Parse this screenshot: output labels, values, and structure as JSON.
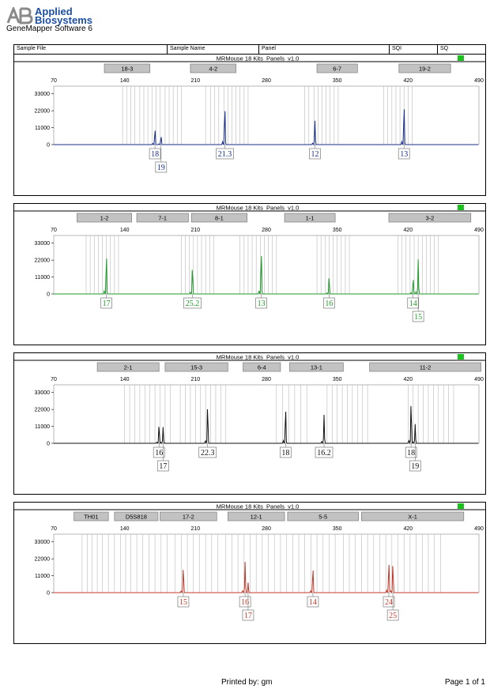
{
  "header": {
    "brand_line1": "Applied",
    "brand_line2": "Biosystems",
    "software": "GeneMapper Software 6",
    "brand_color": "#1d4ea1"
  },
  "columns": [
    "Sample File",
    "Sample Name",
    "Panel",
    "SQI",
    "SQ"
  ],
  "footer": {
    "printed_by": "Printed by: gm",
    "page": "Page 1 of 1"
  },
  "chart_data": [
    {
      "type": "line",
      "panel_title": "MRMouse 18 Kits_Panels_v1.0",
      "color": "#1a2f8a",
      "xlim": [
        70,
        490
      ],
      "x_ticks": [
        70,
        140,
        210,
        280,
        350,
        420,
        490
      ],
      "ylim": [
        0,
        38000
      ],
      "y_ticks": [
        0,
        11000,
        22000,
        33000
      ],
      "markers": [
        {
          "name": "18-3",
          "range": [
            120,
            165
          ]
        },
        {
          "name": "4-2",
          "range": [
            205,
            250
          ]
        },
        {
          "name": "6-7",
          "range": [
            330,
            370
          ]
        },
        {
          "name": "19-2",
          "range": [
            411,
            462
          ]
        }
      ],
      "bins": [
        138,
        142,
        146,
        150,
        155,
        159,
        163,
        167,
        171,
        175,
        180,
        184,
        188,
        192,
        196,
        220,
        225,
        229,
        233,
        238,
        242,
        246,
        250,
        254,
        258,
        262,
        318,
        322,
        327,
        331,
        335,
        339,
        343,
        347,
        351,
        396,
        400,
        404,
        408,
        412,
        416,
        420,
        424
      ],
      "peaks": [
        {
          "x": 170,
          "height": 11000
        },
        {
          "x": 176,
          "height": 6000
        },
        {
          "x": 239,
          "height": 26500
        },
        {
          "x": 328,
          "height": 15500
        },
        {
          "x": 416,
          "height": 28000
        }
      ],
      "allele_calls": [
        {
          "label": "18",
          "x": 170,
          "row": 1
        },
        {
          "label": "19",
          "x": 176,
          "row": 2
        },
        {
          "label": "21.3",
          "x": 239,
          "row": 1
        },
        {
          "label": "12",
          "x": 328,
          "row": 1
        },
        {
          "label": "13",
          "x": 416,
          "row": 1
        }
      ]
    },
    {
      "type": "line",
      "panel_title": "MRMouse 18 Kits_Panels_v1.0",
      "color": "#1f9a2a",
      "xlim": [
        70,
        490
      ],
      "x_ticks": [
        70,
        140,
        210,
        280,
        350,
        420,
        490
      ],
      "ylim": [
        0,
        38000
      ],
      "y_ticks": [
        0,
        11000,
        22000,
        33000
      ],
      "markers": [
        {
          "name": "1-2",
          "range": [
            93,
            147
          ]
        },
        {
          "name": "7-1",
          "range": [
            152,
            203
          ]
        },
        {
          "name": "8-1",
          "range": [
            206,
            261
          ]
        },
        {
          "name": "1-1",
          "range": [
            298,
            348
          ]
        },
        {
          "name": "3-2",
          "range": [
            401,
            482
          ]
        }
      ],
      "bins": [
        102,
        106,
        110,
        114,
        118,
        122,
        126,
        130,
        134,
        196,
        200,
        204,
        208,
        212,
        216,
        220,
        224,
        228,
        254,
        258,
        262,
        266,
        270,
        274,
        278,
        282,
        286,
        290,
        330,
        334,
        338,
        342,
        346,
        350,
        354,
        358,
        362,
        410,
        414,
        418,
        422,
        426,
        430,
        434,
        438,
        442,
        446,
        450
      ],
      "peaks": [
        {
          "x": 122,
          "height": 28000
        },
        {
          "x": 207,
          "height": 19000
        },
        {
          "x": 275,
          "height": 30000
        },
        {
          "x": 342,
          "height": 12500
        },
        {
          "x": 425,
          "height": 11000
        },
        {
          "x": 430,
          "height": 22500
        }
      ],
      "allele_calls": [
        {
          "label": "17",
          "x": 122,
          "row": 1
        },
        {
          "label": "25.2",
          "x": 207,
          "row": 1
        },
        {
          "label": "13",
          "x": 275,
          "row": 1
        },
        {
          "label": "16",
          "x": 342,
          "row": 1
        },
        {
          "label": "14",
          "x": 425,
          "row": 1
        },
        {
          "label": "15",
          "x": 430,
          "row": 2
        }
      ]
    },
    {
      "type": "line",
      "panel_title": "MRMouse 18 Kits_Panels_v1.0",
      "color": "#111111",
      "xlim": [
        70,
        490
      ],
      "x_ticks": [
        70,
        140,
        210,
        280,
        350,
        420,
        490
      ],
      "ylim": [
        0,
        38000
      ],
      "y_ticks": [
        0,
        11000,
        22000,
        33000
      ],
      "markers": [
        {
          "name": "2-1",
          "range": [
            113,
            174
          ]
        },
        {
          "name": "15-3",
          "range": [
            180,
            242
          ]
        },
        {
          "name": "6-4",
          "range": [
            257,
            294
          ]
        },
        {
          "name": "13-1",
          "range": [
            303,
            356
          ]
        },
        {
          "name": "11-2",
          "range": [
            382,
            492
          ]
        }
      ],
      "bins": [
        140,
        145,
        150,
        155,
        160,
        165,
        170,
        175,
        180,
        185,
        195,
        200,
        205,
        210,
        215,
        220,
        225,
        230,
        235,
        240,
        290,
        296,
        302,
        308,
        314,
        320,
        340,
        345,
        350,
        355,
        360,
        365,
        370,
        375,
        380,
        420,
        425,
        430,
        435,
        440,
        445,
        450,
        455,
        460,
        465
      ],
      "peaks": [
        {
          "x": 174,
          "height": 13000
        },
        {
          "x": 178,
          "height": 10500
        },
        {
          "x": 222,
          "height": 27000
        },
        {
          "x": 299,
          "height": 25000
        },
        {
          "x": 337,
          "height": 18500
        },
        {
          "x": 423,
          "height": 29500
        },
        {
          "x": 427,
          "height": 12500
        }
      ],
      "allele_calls": [
        {
          "label": "16",
          "x": 174,
          "row": 1
        },
        {
          "label": "17",
          "x": 178,
          "row": 2
        },
        {
          "label": "22.3",
          "x": 222,
          "row": 1
        },
        {
          "label": "18",
          "x": 299,
          "row": 1
        },
        {
          "label": "16.2",
          "x": 337,
          "row": 1
        },
        {
          "label": "18",
          "x": 423,
          "row": 1
        },
        {
          "label": "19",
          "x": 427,
          "row": 2
        }
      ]
    },
    {
      "type": "line",
      "panel_title": "MRMouse 18 Kits_Panels_v1.0",
      "color": "#c0392b",
      "xlim": [
        70,
        490
      ],
      "x_ticks": [
        70,
        140,
        210,
        280,
        350,
        420,
        490
      ],
      "ylim": [
        0,
        38000
      ],
      "y_ticks": [
        0,
        11000,
        22000,
        33000
      ],
      "markers": [
        {
          "name": "TH01",
          "range": [
            90,
            124
          ]
        },
        {
          "name": "D5S818",
          "range": [
            130,
            173
          ]
        },
        {
          "name": "17-2",
          "range": [
            175,
            231
          ]
        },
        {
          "name": "12-1",
          "range": [
            242,
            298
          ]
        },
        {
          "name": "5-5",
          "range": [
            301,
            371
          ]
        },
        {
          "name": "X-1",
          "range": [
            374,
            475
          ]
        }
      ],
      "bins": [
        98,
        103,
        108,
        113,
        118,
        124,
        130,
        136,
        141,
        146,
        152,
        158,
        164,
        170,
        176,
        182,
        190,
        196,
        202,
        208,
        214,
        220,
        226,
        232,
        240,
        246,
        252,
        258,
        264,
        270,
        276,
        282,
        288,
        294,
        300,
        306,
        312,
        318,
        324,
        330,
        336,
        342,
        348,
        356,
        362,
        368,
        374,
        380,
        386,
        392,
        398,
        404,
        410,
        416,
        422,
        428,
        434,
        440,
        446,
        452
      ],
      "peaks": [
        {
          "x": 198,
          "height": 18000
        },
        {
          "x": 259,
          "height": 20000
        },
        {
          "x": 262,
          "height": 6500
        },
        {
          "x": 326,
          "height": 17500
        },
        {
          "x": 401,
          "height": 22000
        },
        {
          "x": 405,
          "height": 21000
        }
      ],
      "allele_calls": [
        {
          "label": "15",
          "x": 198,
          "row": 1
        },
        {
          "label": "16",
          "x": 259,
          "row": 1
        },
        {
          "label": "17",
          "x": 262,
          "row": 2
        },
        {
          "label": "14",
          "x": 326,
          "row": 1
        },
        {
          "label": "24",
          "x": 401,
          "row": 1
        },
        {
          "label": "25",
          "x": 405,
          "row": 2
        }
      ]
    }
  ]
}
